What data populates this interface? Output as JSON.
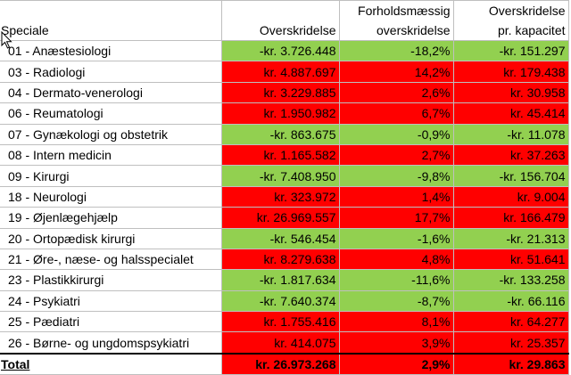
{
  "header": {
    "col1": "Speciale",
    "col2": "Overskridelse",
    "col3_line1": "Forholdsmæssig",
    "col3_line2": "overskridelse",
    "col4_line1": "Overskridelse",
    "col4_line2": "pr. kapacitet"
  },
  "colors": {
    "green": "#92d050",
    "red": "#ff0000"
  },
  "rows": [
    {
      "name": "01 - Anæstesiologi",
      "over": "-kr. 3.726.448",
      "ratio": "-18,2%",
      "cap": "-kr. 151.297",
      "status": "green"
    },
    {
      "name": "03 - Radiologi",
      "over": "kr. 4.887.697",
      "ratio": "14,2%",
      "cap": "kr. 179.438",
      "status": "red"
    },
    {
      "name": "04 - Dermato-venerologi",
      "over": "kr. 3.229.885",
      "ratio": "2,6%",
      "cap": "kr. 30.958",
      "status": "red"
    },
    {
      "name": "06 - Reumatologi",
      "over": "kr. 1.950.982",
      "ratio": "6,7%",
      "cap": "kr. 45.414",
      "status": "red"
    },
    {
      "name": "07 - Gynækologi og obstetrik",
      "over": "-kr. 863.675",
      "ratio": "-0,9%",
      "cap": "-kr. 11.078",
      "status": "green"
    },
    {
      "name": "08 - Intern medicin",
      "over": "kr. 1.165.582",
      "ratio": "2,7%",
      "cap": "kr. 37.263",
      "status": "red"
    },
    {
      "name": "09 - Kirurgi",
      "over": "-kr. 7.408.950",
      "ratio": "-9,8%",
      "cap": "-kr. 156.704",
      "status": "green"
    },
    {
      "name": "18 - Neurologi",
      "over": "kr. 323.972",
      "ratio": "1,4%",
      "cap": "kr. 9.004",
      "status": "red"
    },
    {
      "name": "19 - Øjenlægehjælp",
      "over": "kr. 26.969.557",
      "ratio": "17,7%",
      "cap": "kr. 166.479",
      "status": "red"
    },
    {
      "name": "20 - Ortopædisk kirurgi",
      "over": "-kr. 546.454",
      "ratio": "-1,6%",
      "cap": "-kr. 21.313",
      "status": "green"
    },
    {
      "name": "21 - Øre-, næse- og halsspecialet",
      "over": "kr. 8.279.638",
      "ratio": "4,8%",
      "cap": "kr. 51.641",
      "status": "red"
    },
    {
      "name": "23 - Plastikkirurgi",
      "over": "-kr. 1.817.634",
      "ratio": "-11,6%",
      "cap": "-kr. 133.258",
      "status": "green"
    },
    {
      "name": "24 - Psykiatri",
      "over": "-kr. 7.640.374",
      "ratio": "-8,7%",
      "cap": "-kr. 66.116",
      "status": "green"
    },
    {
      "name": "25 - Pædiatri",
      "over": "kr. 1.755.416",
      "ratio": "8,1%",
      "cap": "kr. 64.277",
      "status": "red"
    },
    {
      "name": "26 - Børne- og ungdomspsykiatri",
      "over": "kr. 414.075",
      "ratio": "3,9%",
      "cap": "kr. 25.357",
      "status": "red"
    }
  ],
  "total": {
    "name": "Total",
    "over": "kr. 26.973.268",
    "ratio": "2,9%",
    "cap": "kr. 29.863",
    "status": "red"
  },
  "cursor_icon": "arrow-cursor-icon"
}
